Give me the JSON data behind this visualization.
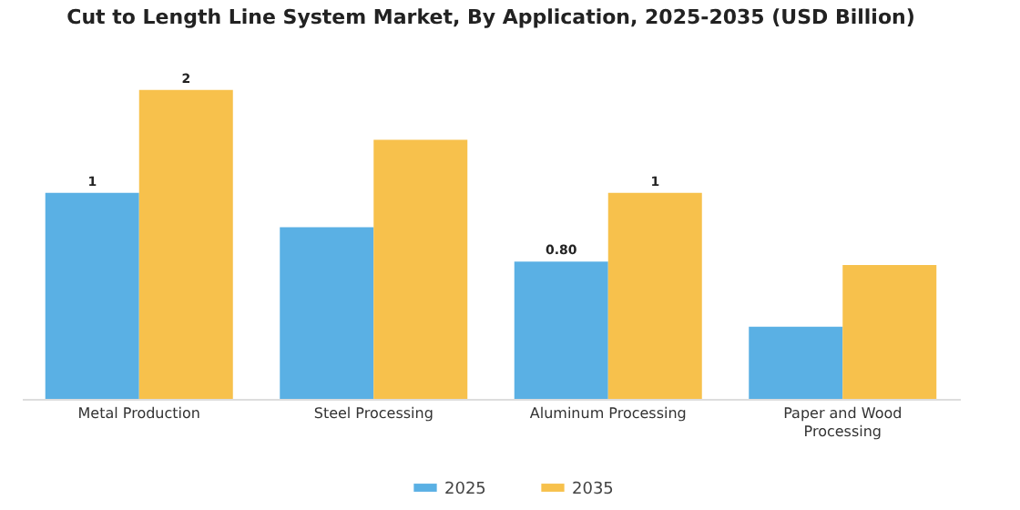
{
  "chart_data": {
    "type": "bar",
    "title": "Cut to Length Line System Market, By Application, 2025-2035 (USD Billion)",
    "categories": [
      "Metal Production",
      "Steel Processing",
      "Aluminum Processing",
      "Paper and Wood Processing"
    ],
    "series": [
      {
        "name": "2025",
        "color": "#5ab0e4",
        "values": [
          1.2,
          1.0,
          0.8,
          0.42
        ],
        "value_labels": [
          "1",
          null,
          "0.80",
          null
        ]
      },
      {
        "name": "2035",
        "color": "#f7c14c",
        "values": [
          1.8,
          1.51,
          1.2,
          0.78
        ],
        "value_labels": [
          "2",
          null,
          "1",
          null
        ]
      }
    ],
    "legend": "bottom",
    "grid": false
  }
}
